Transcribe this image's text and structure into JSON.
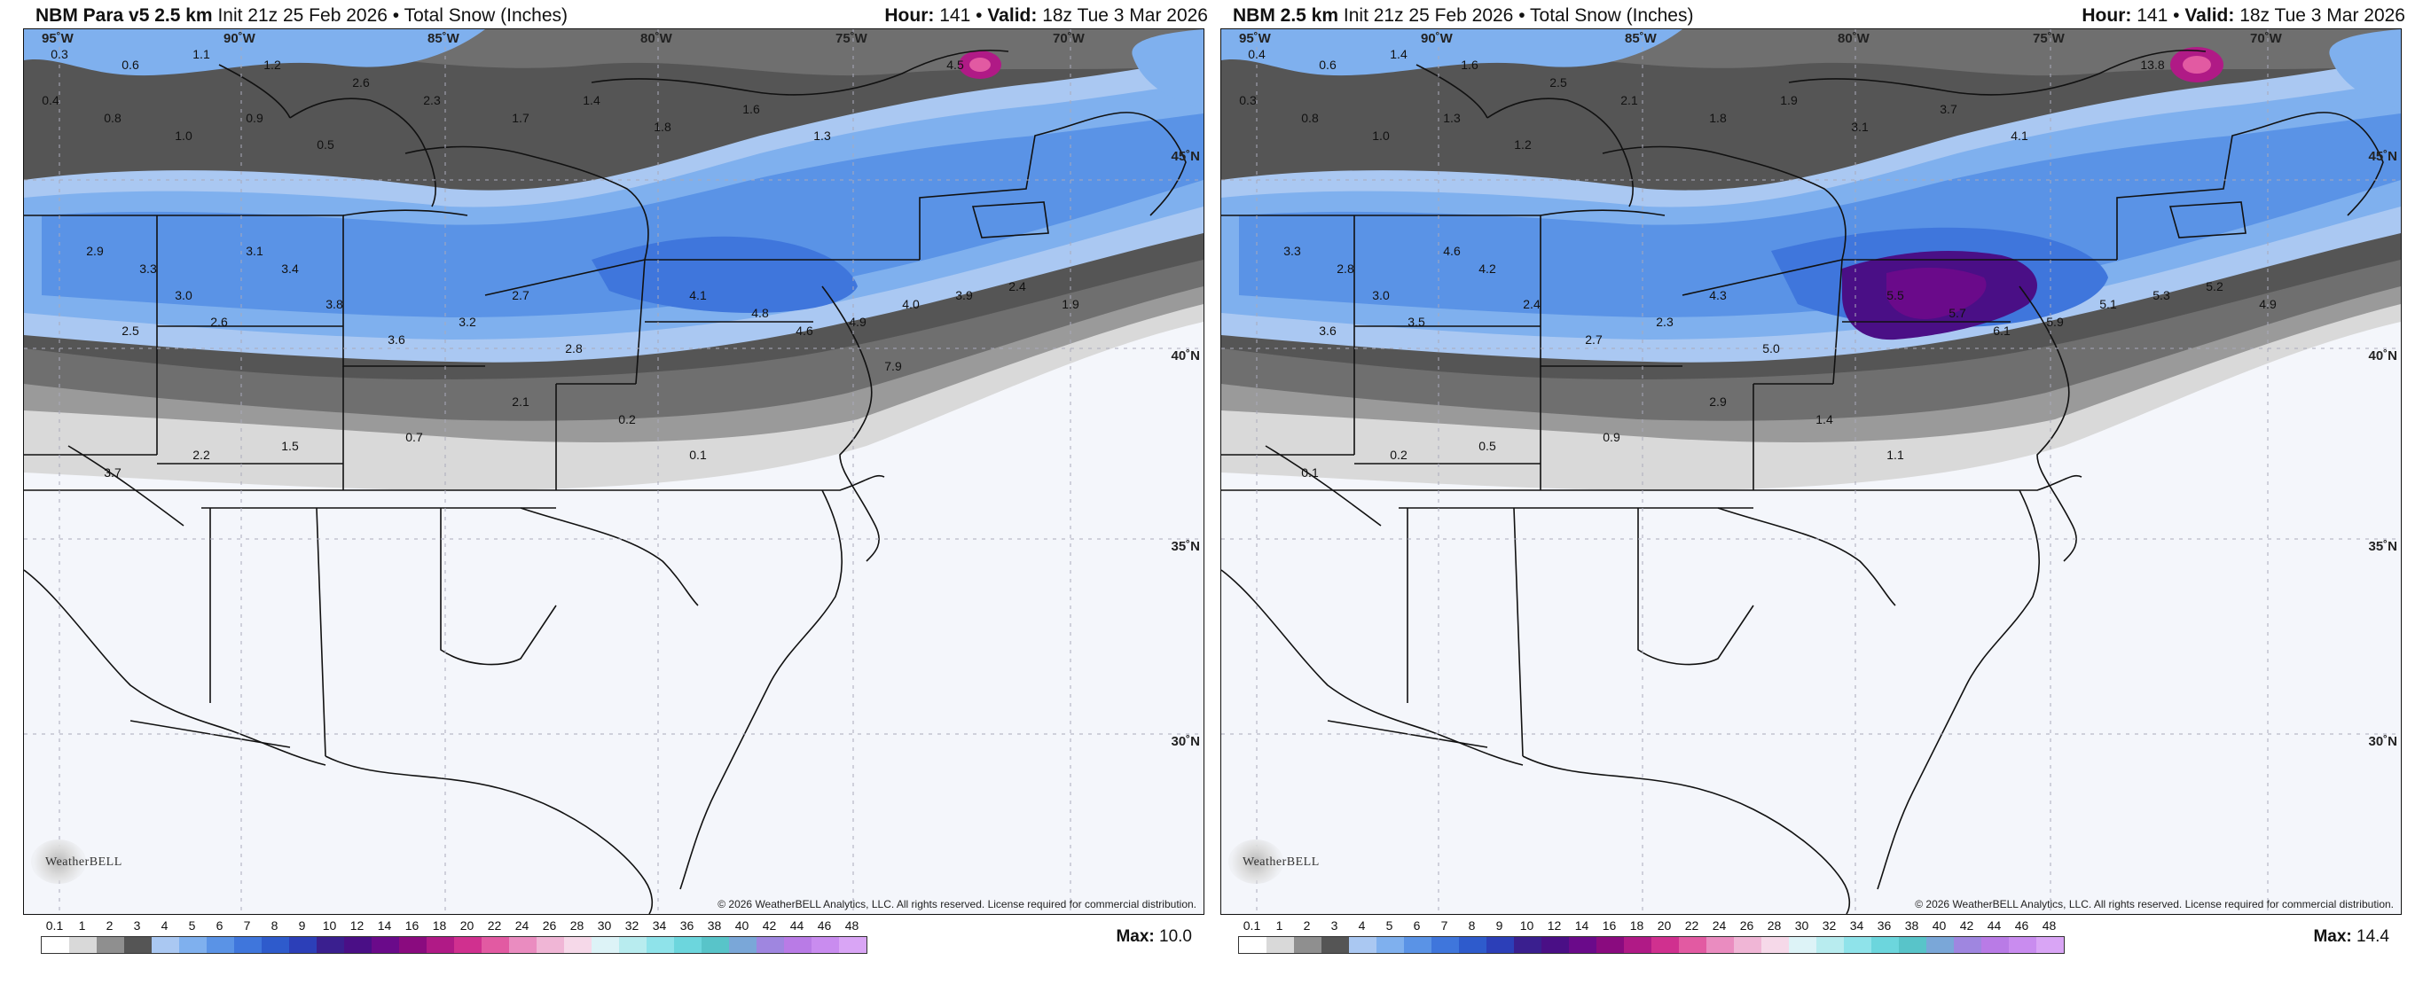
{
  "panels": [
    {
      "model": "NBM Para v5 2.5 km",
      "init": "Init 21z 25 Feb 2026",
      "sep": "•",
      "field": "Total Snow (Inches)",
      "hour_label": "Hour:",
      "hour": "141",
      "valid_label": "Valid:",
      "valid": "18z Tue 3 Mar 2026",
      "max_label": "Max:",
      "max": "10.0",
      "copyright": "© 2026 WeatherBELL Analytics, LLC. All rights reserved. License required for commercial distribution.",
      "logo": "WeatherBELL",
      "values": [
        "0.3",
        "0.6",
        "1.1",
        "1.2",
        "2.6",
        "0.4",
        "0.8",
        "1.0",
        "0.9",
        "0.5",
        "2.3",
        "1.7",
        "1.4",
        "1.8",
        "1.6",
        "1.3",
        "3.1",
        "3.4",
        "2.9",
        "3.3",
        "3.0",
        "2.5",
        "2.6",
        "3.8",
        "3.6",
        "3.2",
        "2.7",
        "2.8",
        "4.1",
        "4.8",
        "4.6",
        "4.9",
        "4.0",
        "3.9",
        "2.4",
        "1.9",
        "2.1",
        "0.2",
        "0.1",
        "0.7",
        "1.5",
        "2.2",
        "3.7",
        "4.5",
        "7.9"
      ]
    },
    {
      "model": "NBM 2.5 km",
      "init": "Init 21z 25 Feb 2026",
      "sep": "•",
      "field": "Total Snow (Inches)",
      "hour_label": "Hour:",
      "hour": "141",
      "valid_label": "Valid:",
      "valid": "18z Tue 3 Mar 2026",
      "max_label": "Max:",
      "max": "14.4",
      "copyright": "© 2026 WeatherBELL Analytics, LLC. All rights reserved. License required for commercial distribution.",
      "logo": "WeatherBELL",
      "values": [
        "0.4",
        "0.6",
        "1.4",
        "1.6",
        "2.5",
        "0.3",
        "0.8",
        "1.0",
        "1.3",
        "1.2",
        "2.1",
        "1.8",
        "1.9",
        "3.1",
        "3.7",
        "4.1",
        "4.6",
        "4.2",
        "3.3",
        "2.8",
        "3.0",
        "3.6",
        "3.5",
        "2.4",
        "2.7",
        "2.3",
        "4.3",
        "5.0",
        "5.5",
        "5.7",
        "6.1",
        "5.9",
        "5.1",
        "5.3",
        "5.2",
        "4.9",
        "2.9",
        "1.4",
        "1.1",
        "0.9",
        "0.5",
        "0.2",
        "0.1",
        "13.8"
      ]
    }
  ],
  "lon_labels": [
    "95˚W",
    "90˚W",
    "85˚W",
    "80˚W",
    "75˚W",
    "70˚W"
  ],
  "lat_labels": [
    "45˚N",
    "40˚N",
    "35˚N",
    "30˚N"
  ],
  "legend_ticks": [
    "0.1",
    "1",
    "2",
    "3",
    "4",
    "5",
    "6",
    "7",
    "8",
    "9",
    "10",
    "12",
    "14",
    "16",
    "18",
    "20",
    "22",
    "24",
    "26",
    "28",
    "30",
    "32",
    "34",
    "36",
    "38",
    "40",
    "42",
    "44",
    "46",
    "48"
  ],
  "legend_colors": [
    "#ffffff",
    "#d9d9d9",
    "#8f8f8f",
    "#555555",
    "#aac8f2",
    "#7fb0ee",
    "#5a93e6",
    "#3f76dc",
    "#2e5bcc",
    "#2c3fb8",
    "#3a1f8f",
    "#4a0f86",
    "#6a0a8a",
    "#8a0b7f",
    "#b01a86",
    "#d0308f",
    "#e25aa2",
    "#ea8cc0",
    "#f0b6d6",
    "#f6d9e9",
    "#ddf3f7",
    "#b8ecef",
    "#8fe3ea",
    "#6cd6dd",
    "#58c4c9",
    "#7aa7d8",
    "#9f86e0",
    "#b97be6",
    "#c98cef",
    "#d9a5f5"
  ],
  "colors": {
    "snow_light": "#aac8f2",
    "snow_mid": "#5a93e6",
    "snow_heavy": "#3f76dc",
    "snow_max": "#4a0f86",
    "gray_dark": "#555555",
    "gray_mid": "#8f8f8f",
    "gray_light": "#d9d9d9",
    "ocean": "#f4f6fb"
  }
}
